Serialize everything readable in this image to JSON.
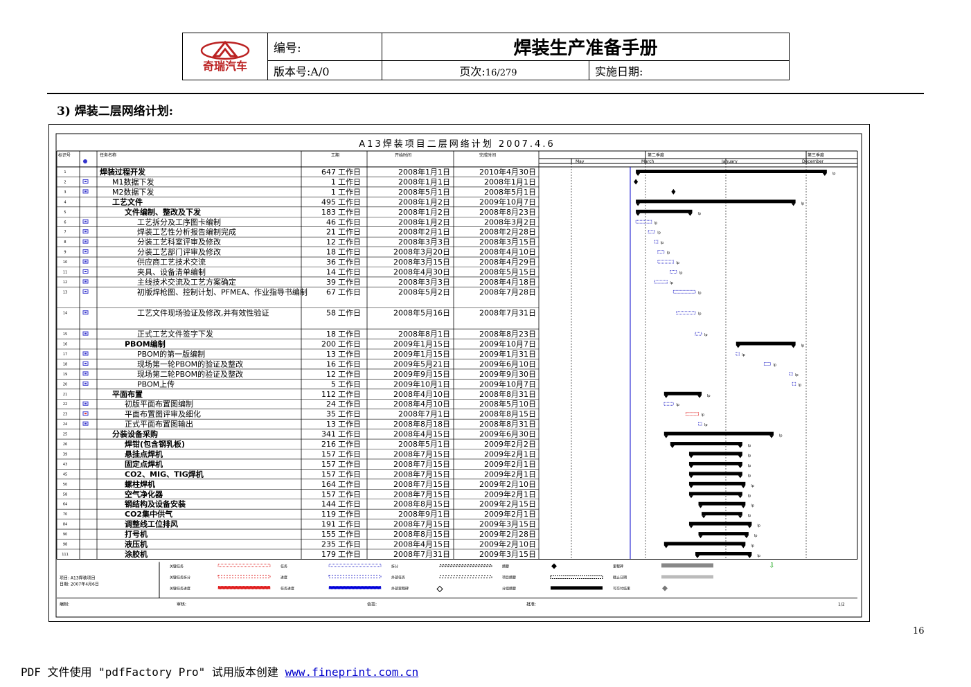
{
  "header": {
    "logo_text": "奇瑞汽车",
    "number_label": "编号:",
    "manual_title": "焊装生产准备手册",
    "version_label": "版本号:A/0",
    "page_label": "页次:",
    "page_value": "16/279",
    "impl_date_label": "实施日期:"
  },
  "section_title": "3) 焊装二层网络计划:",
  "gantt": {
    "title": "A13焊装项目二层网络计划 2007.4.6",
    "columns": {
      "id": "标识号",
      "name": "任务名称",
      "duration": "工期",
      "start": "开始时间",
      "finish": "完成时间"
    },
    "timeline_groups": [
      "第二季度",
      "第三季度"
    ],
    "timeline_months": [
      "May",
      "March",
      "January",
      "December"
    ],
    "unit": "工作日",
    "tasks": [
      {
        "id": "1",
        "name": "焊装过程开发",
        "dur": "647",
        "start": "2008年1月1日",
        "finish": "2010年4月30日",
        "indent": 0,
        "type": "summary",
        "s": 0.31,
        "e": 0.92
      },
      {
        "id": "2",
        "name": "M1数据下发",
        "dur": "1",
        "start": "2008年1月1日",
        "finish": "2008年1月1日",
        "indent": 1,
        "type": "milestone",
        "s": 0.31,
        "e": 0.31
      },
      {
        "id": "3",
        "name": "M2数据下发",
        "dur": "1",
        "start": "2008年5月1日",
        "finish": "2008年5月1日",
        "indent": 1,
        "type": "milestone",
        "s": 0.43,
        "e": 0.43
      },
      {
        "id": "4",
        "name": "工艺文件",
        "dur": "495",
        "start": "2008年1月2日",
        "finish": "2009年10月7日",
        "indent": 1,
        "type": "summary",
        "s": 0.31,
        "e": 0.82
      },
      {
        "id": "5",
        "name": "文件编制、整改及下发",
        "dur": "183",
        "start": "2008年1月2日",
        "finish": "2008年8月23日",
        "indent": 2,
        "type": "summary",
        "s": 0.31,
        "e": 0.49
      },
      {
        "id": "6",
        "name": "工艺拆分及工序图卡编制",
        "dur": "46",
        "start": "2008年1月2日",
        "finish": "2008年3月2日",
        "indent": 3,
        "type": "task",
        "s": 0.31,
        "e": 0.36
      },
      {
        "id": "7",
        "name": "焊装工艺性分析报告编制完成",
        "dur": "21",
        "start": "2008年2月1日",
        "finish": "2008年2月28日",
        "indent": 3,
        "type": "task",
        "s": 0.35,
        "e": 0.37
      },
      {
        "id": "8",
        "name": "分装工艺科室评审及修改",
        "dur": "12",
        "start": "2008年3月3日",
        "finish": "2008年3月15日",
        "indent": 3,
        "type": "task",
        "s": 0.37,
        "e": 0.38
      },
      {
        "id": "9",
        "name": "分装工艺部门评审及修改",
        "dur": "18",
        "start": "2008年3月20日",
        "finish": "2008年4月10日",
        "indent": 3,
        "type": "task",
        "s": 0.38,
        "e": 0.4
      },
      {
        "id": "10",
        "name": "供应商工艺技术交流",
        "dur": "36",
        "start": "2008年3月15日",
        "finish": "2008年4月29日",
        "indent": 3,
        "type": "task",
        "s": 0.38,
        "e": 0.43
      },
      {
        "id": "11",
        "name": "夹具、设备清单编制",
        "dur": "14",
        "start": "2008年4月30日",
        "finish": "2008年5月15日",
        "indent": 3,
        "type": "task",
        "s": 0.42,
        "e": 0.44
      },
      {
        "id": "12",
        "name": "主线技术交流及工艺方案确定",
        "dur": "39",
        "start": "2008年3月3日",
        "finish": "2008年4月18日",
        "indent": 3,
        "type": "task",
        "s": 0.37,
        "e": 0.41
      },
      {
        "id": "13",
        "name": "初版焊枪图、控制计划、PFMEA、作业指导书编制",
        "dur": "67",
        "start": "2008年5月2日",
        "finish": "2008年7月28日",
        "indent": 3,
        "type": "task",
        "s": 0.43,
        "e": 0.5
      },
      {
        "id": "14",
        "name": "工艺文件现场验证及修改,并有效性验证",
        "dur": "58",
        "start": "2008年5月16日",
        "finish": "2008年7月31日",
        "indent": 3,
        "type": "task",
        "s": 0.44,
        "e": 0.5
      },
      {
        "id": "15",
        "name": "正式工艺文件签字下发",
        "dur": "18",
        "start": "2008年8月1日",
        "finish": "2008年8月23日",
        "indent": 3,
        "type": "task",
        "s": 0.5,
        "e": 0.52
      },
      {
        "id": "16",
        "name": "PBOM编制",
        "dur": "200",
        "start": "2009年1月15日",
        "finish": "2009年10月7日",
        "indent": 2,
        "type": "summary",
        "s": 0.63,
        "e": 0.82
      },
      {
        "id": "17",
        "name": "PBOM的第一版编制",
        "dur": "13",
        "start": "2009年1月15日",
        "finish": "2009年1月31日",
        "indent": 3,
        "type": "task",
        "s": 0.63,
        "e": 0.64
      },
      {
        "id": "18",
        "name": "现场第一轮PBOM的验证及整改",
        "dur": "16",
        "start": "2009年5月21日",
        "finish": "2009年6月10日",
        "indent": 3,
        "type": "task",
        "s": 0.72,
        "e": 0.74
      },
      {
        "id": "19",
        "name": "现场第二轮PBOM的验证及整改",
        "dur": "12",
        "start": "2009年9月15日",
        "finish": "2009年9月30日",
        "indent": 3,
        "type": "task",
        "s": 0.8,
        "e": 0.81
      },
      {
        "id": "20",
        "name": "PBOM上传",
        "dur": "5",
        "start": "2009年10月1日",
        "finish": "2009年10月7日",
        "indent": 3,
        "type": "task",
        "s": 0.81,
        "e": 0.82
      },
      {
        "id": "21",
        "name": "平面布置",
        "dur": "112",
        "start": "2008年4月10日",
        "finish": "2008年8月31日",
        "indent": 1,
        "type": "summary",
        "s": 0.4,
        "e": 0.52
      },
      {
        "id": "22",
        "name": "初版平面布置图编制",
        "dur": "24",
        "start": "2008年4月10日",
        "finish": "2008年5月10日",
        "indent": 2,
        "type": "task",
        "s": 0.4,
        "e": 0.43
      },
      {
        "id": "23",
        "name": "平面布置图评审及细化",
        "dur": "35",
        "start": "2008年7月1日",
        "finish": "2008年8月15日",
        "indent": 2,
        "type": "critical",
        "s": 0.47,
        "e": 0.51
      },
      {
        "id": "24",
        "name": "正式平面布置图输出",
        "dur": "13",
        "start": "2008年8月18日",
        "finish": "2008年8月31日",
        "indent": 2,
        "type": "task",
        "s": 0.51,
        "e": 0.52
      },
      {
        "id": "25",
        "name": "分装设备采购",
        "dur": "341",
        "start": "2008年4月15日",
        "finish": "2009年6月30日",
        "indent": 1,
        "type": "summary",
        "s": 0.4,
        "e": 0.75
      },
      {
        "id": "26",
        "name": "焊钳(包含钢乳板)",
        "dur": "216",
        "start": "2008年5月1日",
        "finish": "2009年2月2日",
        "indent": 2,
        "type": "summary",
        "s": 0.42,
        "e": 0.65
      },
      {
        "id": "39",
        "name": "悬挂点焊机",
        "dur": "157",
        "start": "2008年7月15日",
        "finish": "2009年2月1日",
        "indent": 2,
        "type": "summary",
        "s": 0.48,
        "e": 0.65
      },
      {
        "id": "43",
        "name": "固定点焊机",
        "dur": "157",
        "start": "2008年7月15日",
        "finish": "2009年2月1日",
        "indent": 2,
        "type": "summary",
        "s": 0.48,
        "e": 0.65
      },
      {
        "id": "45",
        "name": "CO2、MIG、TIG焊机",
        "dur": "157",
        "start": "2008年7月15日",
        "finish": "2009年2月1日",
        "indent": 2,
        "type": "summary",
        "s": 0.48,
        "e": 0.65
      },
      {
        "id": "50",
        "name": "螺柱焊机",
        "dur": "164",
        "start": "2008年7月15日",
        "finish": "2009年2月10日",
        "indent": 2,
        "type": "summary",
        "s": 0.48,
        "e": 0.66
      },
      {
        "id": "58",
        "name": "空气净化器",
        "dur": "157",
        "start": "2008年7月15日",
        "finish": "2009年2月1日",
        "indent": 2,
        "type": "summary",
        "s": 0.48,
        "e": 0.65
      },
      {
        "id": "64",
        "name": "钢结构及设备安装",
        "dur": "144",
        "start": "2008年8月15日",
        "finish": "2009年2月15日",
        "indent": 2,
        "type": "summary",
        "s": 0.51,
        "e": 0.66
      },
      {
        "id": "70",
        "name": "CO2集中供气",
        "dur": "119",
        "start": "2008年9月1日",
        "finish": "2009年2月1日",
        "indent": 2,
        "type": "summary",
        "s": 0.52,
        "e": 0.65
      },
      {
        "id": "84",
        "name": "调整线工位排风",
        "dur": "191",
        "start": "2008年7月15日",
        "finish": "2009年3月15日",
        "indent": 2,
        "type": "summary",
        "s": 0.48,
        "e": 0.68
      },
      {
        "id": "90",
        "name": "打号机",
        "dur": "155",
        "start": "2008年8月15日",
        "finish": "2009年2月28日",
        "indent": 2,
        "type": "summary",
        "s": 0.51,
        "e": 0.67
      },
      {
        "id": "98",
        "name": "液压机",
        "dur": "235",
        "start": "2008年4月15日",
        "finish": "2009年2月10日",
        "indent": 2,
        "type": "summary",
        "s": 0.4,
        "e": 0.66
      },
      {
        "id": "111",
        "name": "涂胶机",
        "dur": "179",
        "start": "2008年7月31日",
        "finish": "2009年3月15日",
        "indent": 2,
        "type": "summary",
        "s": 0.5,
        "e": 0.68
      }
    ],
    "project_info": [
      "项目: A13焊装项目",
      "日期: 2007年4月6日"
    ],
    "legend": [
      [
        "关键任务",
        "任务",
        "拆分",
        "摘要",
        "里程碑"
      ],
      [
        "关键任务拆分",
        "进度",
        "外部任务",
        "项目摘要",
        "截止日期"
      ],
      [
        "关键任务进度",
        "任务进度",
        "外部里程碑",
        "分组摘要",
        "可交付结果"
      ]
    ],
    "signatures": [
      "编制:",
      "审核:",
      "会签:",
      "批准:"
    ],
    "sheet": "1/2",
    "colors": {
      "summary": "#000000",
      "task": "#3333cc",
      "critical": "#e02020",
      "grid": "#000000",
      "today_line": "#0000cc"
    }
  },
  "page_number": "16",
  "footer": {
    "prefix": "PDF 文件使用 \"pdfFactory Pro\" 试用版本创建 ",
    "link": "www.fineprint.com.cn"
  }
}
